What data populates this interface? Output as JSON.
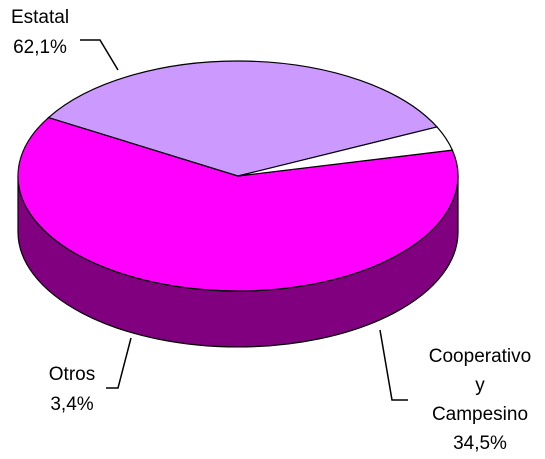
{
  "chart_data": {
    "type": "pie3d",
    "categories": [
      "Estatal",
      "Cooperativo y Campesino",
      "Otros"
    ],
    "values": [
      62.1,
      34.5,
      3.4
    ],
    "value_labels": [
      "62,1%",
      "34,5%",
      "3,4%"
    ],
    "colors": [
      "#ff00ff",
      "#cc99ff",
      "#ffffff"
    ],
    "side_colors": [
      "#800080",
      "#666699",
      "#808080"
    ]
  }
}
